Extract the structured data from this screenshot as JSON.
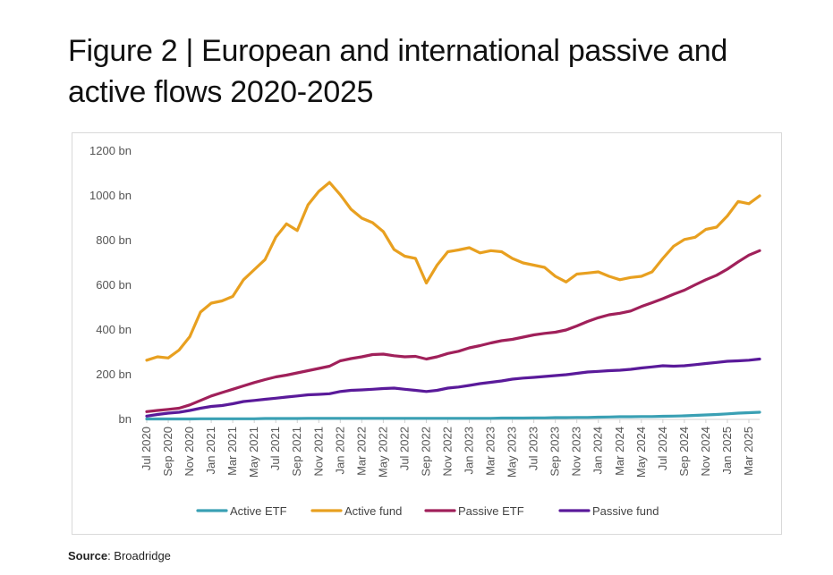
{
  "title": "Figure 2 | European and international passive and active flows 2020-2025",
  "source_label": "Source",
  "source_text": ": Broadridge",
  "chart_data": {
    "type": "line",
    "title": "Figure 2 | European and international passive and active flows 2020-2025",
    "xlabel": "",
    "ylabel": "",
    "ylim": [
      0,
      1200
    ],
    "y_ticks": [
      {
        "value": 0,
        "label": "bn"
      },
      {
        "value": 200,
        "label": "200 bn"
      },
      {
        "value": 400,
        "label": "400 bn"
      },
      {
        "value": 600,
        "label": "600 bn"
      },
      {
        "value": 800,
        "label": "800 bn"
      },
      {
        "value": 1000,
        "label": "1000 bn"
      },
      {
        "value": 1200,
        "label": "1200 bn"
      }
    ],
    "x_tick_labels": [
      "Jul 2020",
      "Sep 2020",
      "Nov 2020",
      "Jan 2021",
      "Mar 2021",
      "May 2021",
      "Jul 2021",
      "Sep 2021",
      "Nov 2021",
      "Jan 2022",
      "Mar 2022",
      "May 2022",
      "Jul 2022",
      "Sep 2022",
      "Nov 2022",
      "Jan 2023",
      "Mar 2023",
      "May 2023",
      "Jul 2023",
      "Sep 2023",
      "Nov 2023",
      "Jan 2024",
      "Mar 2024",
      "May 2024",
      "Jul 2024",
      "Sep 2024",
      "Nov 2024",
      "Jan 2025",
      "Mar 2025"
    ],
    "months_count": 58,
    "legend_position": "bottom",
    "grid": false,
    "series": [
      {
        "name": "Active ETF",
        "color": "#3aa0b4",
        "values": [
          2,
          2,
          2,
          2,
          2,
          3,
          3,
          3,
          3,
          3,
          3,
          4,
          4,
          4,
          4,
          5,
          5,
          5,
          5,
          5,
          5,
          5,
          5,
          5,
          5,
          5,
          5,
          5,
          5,
          5,
          5,
          5,
          5,
          6,
          6,
          6,
          7,
          7,
          8,
          8,
          9,
          9,
          10,
          11,
          12,
          12,
          13,
          13,
          14,
          15,
          16,
          18,
          20,
          22,
          25,
          28,
          30,
          32
        ]
      },
      {
        "name": "Active fund",
        "color": "#e8a020",
        "values": [
          265,
          280,
          275,
          310,
          370,
          480,
          520,
          530,
          550,
          625,
          670,
          715,
          815,
          875,
          845,
          960,
          1020,
          1060,
          1005,
          940,
          900,
          880,
          840,
          760,
          730,
          720,
          610,
          690,
          750,
          758,
          768,
          745,
          755,
          750,
          720,
          700,
          690,
          680,
          640,
          615,
          650,
          655,
          660,
          640,
          625,
          635,
          640,
          660,
          720,
          775,
          805,
          815,
          850,
          860,
          910,
          975,
          965,
          1000
        ]
      },
      {
        "name": "Passive ETF",
        "color": "#a0205a",
        "values": [
          35,
          40,
          45,
          50,
          65,
          85,
          105,
          120,
          135,
          150,
          165,
          178,
          190,
          198,
          208,
          218,
          228,
          238,
          262,
          272,
          280,
          290,
          292,
          285,
          280,
          282,
          270,
          280,
          295,
          305,
          320,
          330,
          342,
          352,
          358,
          368,
          378,
          385,
          390,
          400,
          418,
          438,
          455,
          468,
          475,
          485,
          505,
          522,
          540,
          560,
          578,
          602,
          625,
          645,
          672,
          705,
          735,
          755
        ]
      },
      {
        "name": "Passive fund",
        "color": "#5a1a9a",
        "values": [
          15,
          22,
          28,
          32,
          40,
          50,
          58,
          62,
          70,
          80,
          85,
          90,
          95,
          100,
          105,
          110,
          112,
          115,
          125,
          130,
          132,
          135,
          138,
          140,
          135,
          130,
          125,
          130,
          140,
          145,
          152,
          160,
          166,
          172,
          180,
          185,
          188,
          192,
          196,
          200,
          206,
          212,
          215,
          218,
          220,
          224,
          230,
          235,
          240,
          238,
          240,
          245,
          250,
          255,
          260,
          262,
          265,
          270
        ]
      }
    ]
  }
}
